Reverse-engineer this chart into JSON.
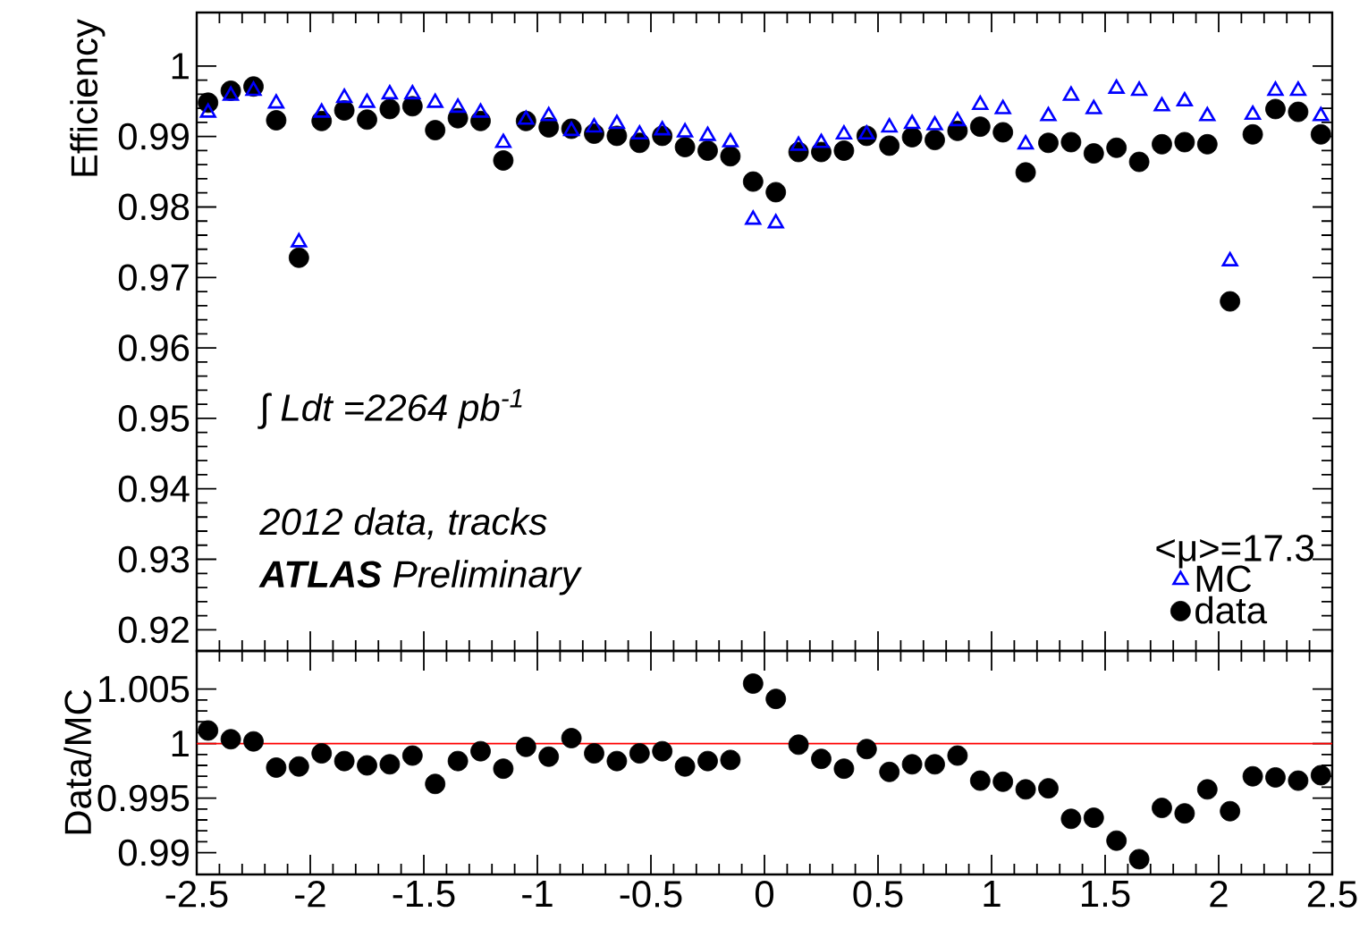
{
  "chart_data": [
    {
      "type": "scatter",
      "ylabel": "Efficiency",
      "xlim": [
        -2.5,
        2.5
      ],
      "ylim": [
        0.917,
        1.0076
      ],
      "xticks": [
        -2.5,
        -2,
        -1.5,
        -1,
        -0.5,
        0,
        0.5,
        1,
        1.5,
        2,
        2.5
      ],
      "yticks": [
        0.92,
        0.93,
        0.94,
        0.95,
        0.96,
        0.97,
        0.98,
        0.99,
        1
      ],
      "tick_labels": "y",
      "legend": "bottom right",
      "legend_title": "<μ>=17.3",
      "annotations": [
        "∫ Ldt =2264 pb$^{-1}$",
        "2012 data, tracks",
        "**ATLAS** Preliminary"
      ],
      "x": [
        -2.45,
        -2.35,
        -2.25,
        -2.15,
        -2.05,
        -1.95,
        -1.85,
        -1.75,
        -1.65,
        -1.55,
        -1.45,
        -1.35,
        -1.25,
        -1.15,
        -1.05,
        -0.95,
        -0.85,
        -0.75,
        -0.65,
        -0.55,
        -0.45,
        -0.35,
        -0.25,
        -0.15,
        -0.05,
        0.05,
        0.15,
        0.25,
        0.35,
        0.45,
        0.55,
        0.65,
        0.75,
        0.85,
        0.95,
        1.05,
        1.15,
        1.25,
        1.35,
        1.45,
        1.55,
        1.65,
        1.75,
        1.85,
        1.95,
        2.05,
        2.15,
        2.25,
        2.35,
        2.45
      ],
      "series": [
        {
          "name": "data",
          "color": "#000000",
          "marker": "circle",
          "values": [
            0.9948,
            0.9965,
            0.9971,
            0.9923,
            0.9728,
            0.9922,
            0.9937,
            0.9924,
            0.9939,
            0.9943,
            0.9909,
            0.9926,
            0.9922,
            0.9866,
            0.9922,
            0.9913,
            0.9911,
            0.9904,
            0.9901,
            0.9891,
            0.9901,
            0.9885,
            0.988,
            0.9872,
            0.9836,
            0.9821,
            0.9878,
            0.9878,
            0.988,
            0.9901,
            0.9887,
            0.9899,
            0.9895,
            0.9908,
            0.9914,
            0.9906,
            0.9849,
            0.9891,
            0.9892,
            0.9876,
            0.9884,
            0.9864,
            0.9889,
            0.9892,
            0.9889,
            0.9666,
            0.9903,
            0.9939,
            0.9935,
            0.9903
          ]
        },
        {
          "name": "MC",
          "color": "#0000ff",
          "marker": "triangle",
          "values": [
            0.9934,
            0.9958,
            0.9965,
            0.9947,
            0.975,
            0.9934,
            0.9955,
            0.9948,
            0.996,
            0.996,
            0.9948,
            0.9941,
            0.9934,
            0.9891,
            0.9924,
            0.9929,
            0.9908,
            0.9913,
            0.9918,
            0.9903,
            0.9909,
            0.9906,
            0.9901,
            0.9892,
            0.9782,
            0.9777,
            0.9887,
            0.9891,
            0.9903,
            0.9903,
            0.9913,
            0.9918,
            0.9916,
            0.9922,
            0.9945,
            0.9939,
            0.9889,
            0.9929,
            0.9958,
            0.9939,
            0.9968,
            0.9965,
            0.9943,
            0.995,
            0.9929,
            0.9723,
            0.9931,
            0.9965,
            0.9965,
            0.9929
          ]
        }
      ]
    },
    {
      "type": "scatter",
      "ylabel": "Data/MC",
      "xlim": [
        -2.5,
        2.5
      ],
      "ylim": [
        0.988,
        1.0085
      ],
      "xticks": [
        -2.5,
        -2,
        -1.5,
        -1,
        -0.5,
        0,
        0.5,
        1,
        1.5,
        2,
        2.5
      ],
      "yticks": [
        0.99,
        0.995,
        1,
        1.005
      ],
      "ref_lines": [
        {
          "axis": "y",
          "value": 1,
          "color": "#ff0000"
        }
      ],
      "x": [
        -2.45,
        -2.35,
        -2.25,
        -2.15,
        -2.05,
        -1.95,
        -1.85,
        -1.75,
        -1.65,
        -1.55,
        -1.45,
        -1.35,
        -1.25,
        -1.15,
        -1.05,
        -0.95,
        -0.85,
        -0.75,
        -0.65,
        -0.55,
        -0.45,
        -0.35,
        -0.25,
        -0.15,
        -0.05,
        0.05,
        0.15,
        0.25,
        0.35,
        0.45,
        0.55,
        0.65,
        0.75,
        0.85,
        0.95,
        1.05,
        1.15,
        1.25,
        1.35,
        1.45,
        1.55,
        1.65,
        1.75,
        1.85,
        1.95,
        2.05,
        2.15,
        2.25,
        2.35,
        2.45
      ],
      "series": [
        {
          "color": "#000000",
          "marker": "circle",
          "values": [
            1.0012,
            1.0004,
            1.0002,
            0.9978,
            0.9979,
            0.9991,
            0.9984,
            0.998,
            0.9981,
            0.9989,
            0.9963,
            0.9984,
            0.9993,
            0.9977,
            0.9997,
            0.9988,
            1.0005,
            0.9991,
            0.9984,
            0.9991,
            0.9993,
            0.9979,
            0.9984,
            0.9985,
            1.0055,
            1.0041,
            0.9999,
            0.9986,
            0.9977,
            0.9995,
            0.9974,
            0.9981,
            0.9981,
            0.9989,
            0.9966,
            0.9965,
            0.9958,
            0.9959,
            0.9931,
            0.9932,
            0.9911,
            0.9894,
            0.9941,
            0.9936,
            0.9958,
            0.9938,
            0.997,
            0.9969,
            0.9966,
            0.9971
          ]
        }
      ]
    }
  ]
}
